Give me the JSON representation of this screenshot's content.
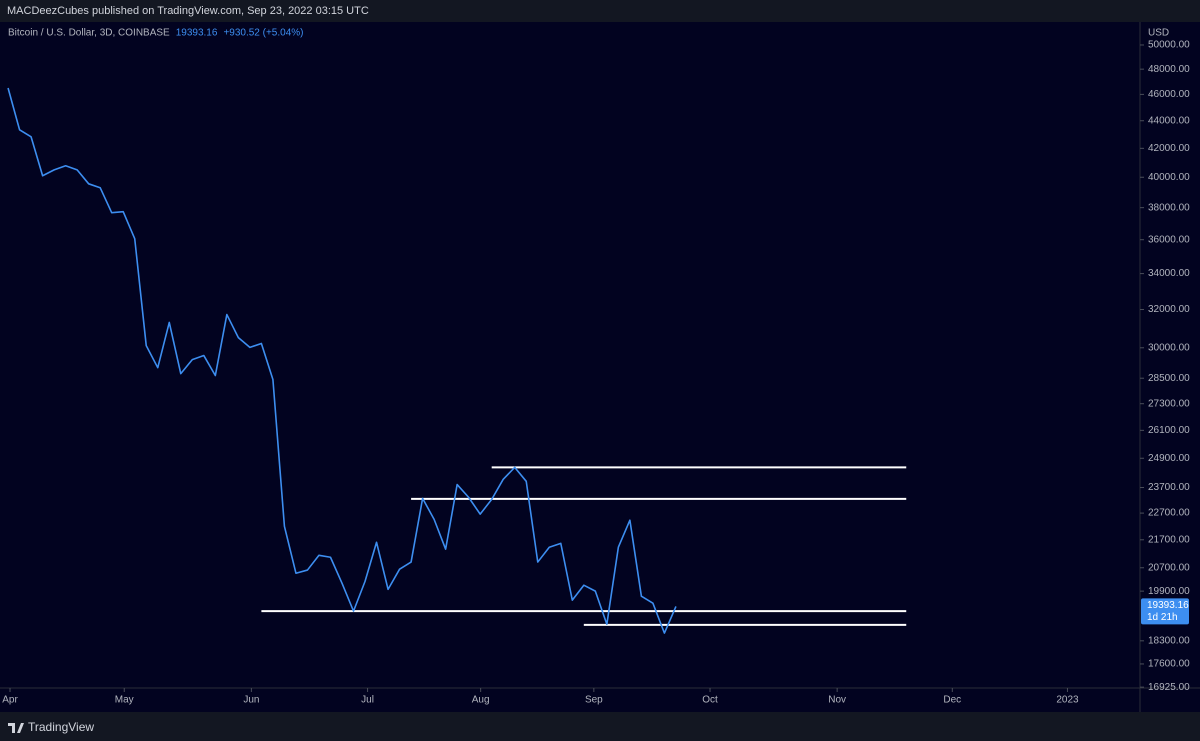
{
  "header": "MACDeezCubes published on TradingView.com, Sep 23, 2022 03:15 UTC",
  "footer": "TradingView",
  "chart_data": {
    "type": "line",
    "title": "Bitcoin / U.S. Dollar, 3D, COINBASE",
    "legend_price": "19393.16",
    "legend_change": "+930.52 (+5.04%)",
    "price_tag": "19393.16",
    "countdown": "1d 21h",
    "y_unit": "USD",
    "log_scale": true,
    "grid": false,
    "color": "#3d8ef0",
    "values": [
      46500,
      43330,
      42820,
      40100,
      40500,
      40780,
      40500,
      39560,
      39300,
      37680,
      37740,
      36060,
      30110,
      29010,
      31310,
      28720,
      29410,
      29610,
      28630,
      31730,
      30520,
      30020,
      30220,
      28440,
      22200,
      20510,
      20620,
      21140,
      21070,
      20170,
      19240,
      20230,
      21610,
      19960,
      20650,
      20900,
      23270,
      22460,
      21360,
      23820,
      23310,
      22660,
      23230,
      24030,
      24520,
      23950,
      20900,
      21430,
      21570,
      19600,
      20100,
      19900,
      18820,
      21430,
      22430,
      19730,
      19500,
      18540,
      19393.16
    ],
    "levels": [
      {
        "value": 24520,
        "from": 42,
        "to": 78
      },
      {
        "value": 23250,
        "from": 35,
        "to": 78
      },
      {
        "value": 19240,
        "from": 22,
        "to": 78
      },
      {
        "value": 18800,
        "from": 50,
        "to": 78
      }
    ],
    "level_color": "#ffffff",
    "xlim": [
      -0.7,
      98.3
    ],
    "xticks": [
      {
        "value": 0.17,
        "label": "Apr"
      },
      {
        "value": 10.09,
        "label": "May"
      },
      {
        "value": 21.13,
        "label": "Jun"
      },
      {
        "value": 31.22,
        "label": "Jul"
      },
      {
        "value": 41.04,
        "label": "Aug"
      },
      {
        "value": 50.87,
        "label": "Sep"
      },
      {
        "value": 60.96,
        "label": "Oct"
      },
      {
        "value": 72.0,
        "label": "Nov"
      },
      {
        "value": 82.0,
        "label": "Dec"
      },
      {
        "value": 92.0,
        "label": "2023"
      }
    ],
    "ylim": [
      16900,
      51800
    ],
    "yticks": [
      {
        "value": 50000,
        "label": "50000.00"
      },
      {
        "value": 48000,
        "label": "48000.00"
      },
      {
        "value": 46000,
        "label": "46000.00"
      },
      {
        "value": 44000,
        "label": "44000.00"
      },
      {
        "value": 42000,
        "label": "42000.00"
      },
      {
        "value": 40000,
        "label": "40000.00"
      },
      {
        "value": 38000,
        "label": "38000.00"
      },
      {
        "value": 36000,
        "label": "36000.00"
      },
      {
        "value": 34000,
        "label": "34000.00"
      },
      {
        "value": 32000,
        "label": "32000.00"
      },
      {
        "value": 30000,
        "label": "30000.00"
      },
      {
        "value": 28500,
        "label": "28500.00"
      },
      {
        "value": 27300,
        "label": "27300.00"
      },
      {
        "value": 26100,
        "label": "26100.00"
      },
      {
        "value": 24900,
        "label": "24900.00"
      },
      {
        "value": 23700,
        "label": "23700.00"
      },
      {
        "value": 22700,
        "label": "22700.00"
      },
      {
        "value": 21700,
        "label": "21700.00"
      },
      {
        "value": 20700,
        "label": "20700.00"
      },
      {
        "value": 19900,
        "label": "19900.00"
      },
      {
        "value": 18300,
        "label": "18300.00"
      },
      {
        "value": 17600,
        "label": "17600.00"
      },
      {
        "value": 16925,
        "label": "16925.00"
      }
    ]
  }
}
